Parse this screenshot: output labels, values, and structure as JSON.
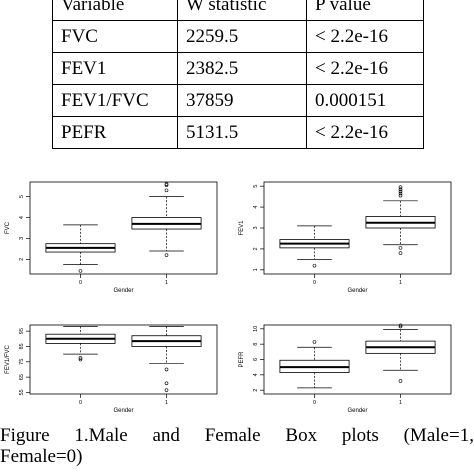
{
  "table": {
    "headers": [
      "Variable",
      "W statistic",
      "P value"
    ],
    "rows": [
      [
        "FVC",
        "2259.5",
        "< 2.2e-16"
      ],
      [
        "FEV1",
        "2382.5",
        "< 2.2e-16"
      ],
      [
        "FEV1/FVC",
        "37859",
        "0.000151"
      ],
      [
        "PEFR",
        "5131.5",
        "< 2.2e-16"
      ]
    ]
  },
  "chart_data": [
    {
      "type": "boxplot",
      "xlabel": "Gender",
      "ylabel": "FVC",
      "categories": [
        "0",
        "1"
      ],
      "ylim": [
        1.3,
        5.7
      ],
      "yticks": [
        2,
        3,
        4,
        5
      ],
      "boxes": [
        {
          "min": 1.75,
          "q1": 2.35,
          "median": 2.55,
          "q3": 2.75,
          "max": 3.65,
          "outliers": [
            1.45
          ]
        },
        {
          "min": 2.4,
          "q1": 3.45,
          "median": 3.7,
          "q3": 4.0,
          "max": 5.0,
          "outliers": [
            2.2,
            5.3,
            5.55,
            5.6
          ]
        }
      ]
    },
    {
      "type": "boxplot",
      "xlabel": "Gender",
      "ylabel": "FEV1",
      "categories": [
        "0",
        "1"
      ],
      "ylim": [
        0.8,
        5.2
      ],
      "yticks": [
        1,
        2,
        3,
        4,
        5
      ],
      "boxes": [
        {
          "min": 1.5,
          "q1": 2.05,
          "median": 2.25,
          "q3": 2.45,
          "max": 3.1,
          "outliers": [
            1.2
          ]
        },
        {
          "min": 2.2,
          "q1": 3.0,
          "median": 3.25,
          "q3": 3.55,
          "max": 4.3,
          "outliers": [
            1.8,
            2.05,
            4.55,
            4.65,
            4.75,
            4.85,
            4.95
          ]
        }
      ]
    },
    {
      "type": "boxplot",
      "xlabel": "Gender",
      "ylabel": "FEV1/FVC",
      "categories": [
        "0",
        "1"
      ],
      "ylim": [
        54,
        99
      ],
      "yticks": [
        55,
        65,
        75,
        85,
        95
      ],
      "boxes": [
        {
          "min": 80,
          "q1": 87,
          "median": 90,
          "q3": 93,
          "max": 98,
          "outliers": [
            76.5,
            77.5
          ]
        },
        {
          "min": 74,
          "q1": 85,
          "median": 88.5,
          "q3": 92,
          "max": 98,
          "outliers": [
            70,
            61,
            56.5
          ]
        }
      ]
    },
    {
      "type": "boxplot",
      "xlabel": "Gender",
      "ylabel": "PEFR",
      "categories": [
        "0",
        "1"
      ],
      "ylim": [
        1.5,
        10.5
      ],
      "yticks": [
        2,
        4,
        6,
        8,
        10
      ],
      "boxes": [
        {
          "min": 2.3,
          "q1": 4.3,
          "median": 5.0,
          "q3": 5.9,
          "max": 7.6,
          "outliers": [
            8.3
          ]
        },
        {
          "min": 4.6,
          "q1": 6.8,
          "median": 7.6,
          "q3": 8.4,
          "max": 9.9,
          "outliers": [
            3.2,
            10.3,
            10.45
          ]
        }
      ]
    }
  ],
  "caption": {
    "line1_words": [
      "Figure",
      "1.Male",
      "and",
      "Female",
      "Box",
      "plots",
      "(Male=1,"
    ],
    "line2": "Female=0)"
  }
}
